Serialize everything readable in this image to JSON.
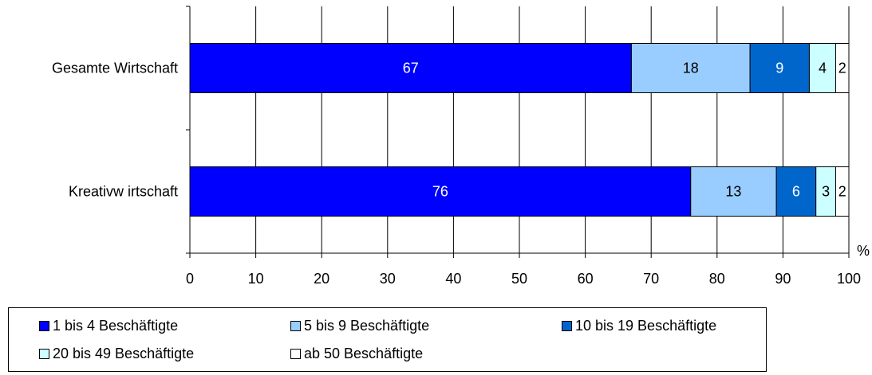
{
  "chart_data": {
    "type": "bar",
    "orientation": "horizontal",
    "stacked": true,
    "categories": [
      "Gesamte Wirtschaft",
      "Kreativw irtschaft"
    ],
    "series": [
      {
        "name": "1 bis 4 Beschäftigte",
        "values": [
          67,
          76
        ],
        "labels": [
          "67",
          "76"
        ],
        "color": "#0000ff",
        "label_color": "#ffffff"
      },
      {
        "name": "5 bis 9 Beschäftigte",
        "values": [
          18,
          13
        ],
        "labels": [
          "18",
          "13"
        ],
        "color": "#99ccff",
        "label_color": "#000000"
      },
      {
        "name": "10 bis 19 Beschäftigte",
        "values": [
          9,
          6
        ],
        "labels": [
          "9",
          "6"
        ],
        "color": "#0066cc",
        "label_color": "#ffffff"
      },
      {
        "name": "20 bis 49 Beschäftigte",
        "values": [
          4,
          3
        ],
        "labels": [
          "4",
          "3"
        ],
        "color": "#ccffff",
        "label_color": "#000000"
      },
      {
        "name": "ab 50 Beschäftigte",
        "values": [
          2,
          2
        ],
        "labels": [
          "2",
          "2"
        ],
        "color": "#ffffff",
        "label_color": "#000000"
      }
    ],
    "xlim": [
      0,
      100
    ],
    "xticks": [
      "0",
      "10",
      "20",
      "30",
      "40",
      "50",
      "60",
      "70",
      "80",
      "90",
      "100"
    ],
    "xunit": "%",
    "grid": "vertical",
    "legend_position": "bottom"
  }
}
